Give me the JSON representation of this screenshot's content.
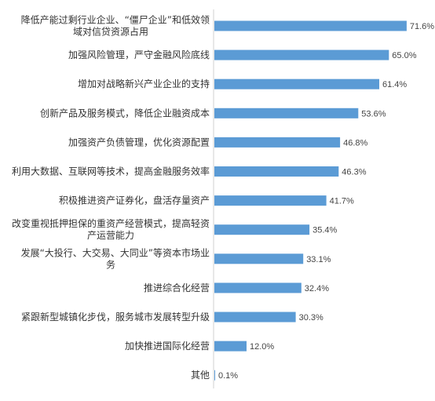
{
  "chart_data": {
    "type": "bar",
    "orientation": "horizontal",
    "title": "",
    "xlabel": "",
    "ylabel": "",
    "xlim": [
      0,
      80
    ],
    "grid": false,
    "legend": "none",
    "bar_color": "#5b9bd5",
    "categories": [
      [
        "降低产能过剩行业企业、“僵尸企业”和低效领",
        "域对信贷资源占用"
      ],
      [
        "加强风险管理，严守金融风险底线"
      ],
      [
        "增加对战略新兴产业企业的支持"
      ],
      [
        "创新产品及服务模式，降低企业融资成本"
      ],
      [
        "加强资产负债管理，优化资源配置"
      ],
      [
        "利用大数据、互联网等技术，提高金融服务效率"
      ],
      [
        "积极推进资产证券化，盘活存量资产"
      ],
      [
        "改变重视抵押担保的重资产经营模式，提高轻资",
        "产运营能力"
      ],
      [
        "发展“大投行、大交易、大同业”等资本市场业",
        "务"
      ],
      [
        "推进综合化经营"
      ],
      [
        "紧跟新型城镇化步伐，服务城市发展转型升级"
      ],
      [
        "加快推进国际化经营"
      ],
      [
        "其他"
      ]
    ],
    "values": [
      71.6,
      65.0,
      61.4,
      53.6,
      46.8,
      46.3,
      41.7,
      35.4,
      33.1,
      32.4,
      30.3,
      12.0,
      0.1
    ],
    "value_labels": [
      "71.6%",
      "65.0%",
      "61.4%",
      "53.6%",
      "46.8%",
      "46.3%",
      "41.7%",
      "35.4%",
      "33.1%",
      "32.4%",
      "30.3%",
      "12.0%",
      "0.1%"
    ]
  }
}
